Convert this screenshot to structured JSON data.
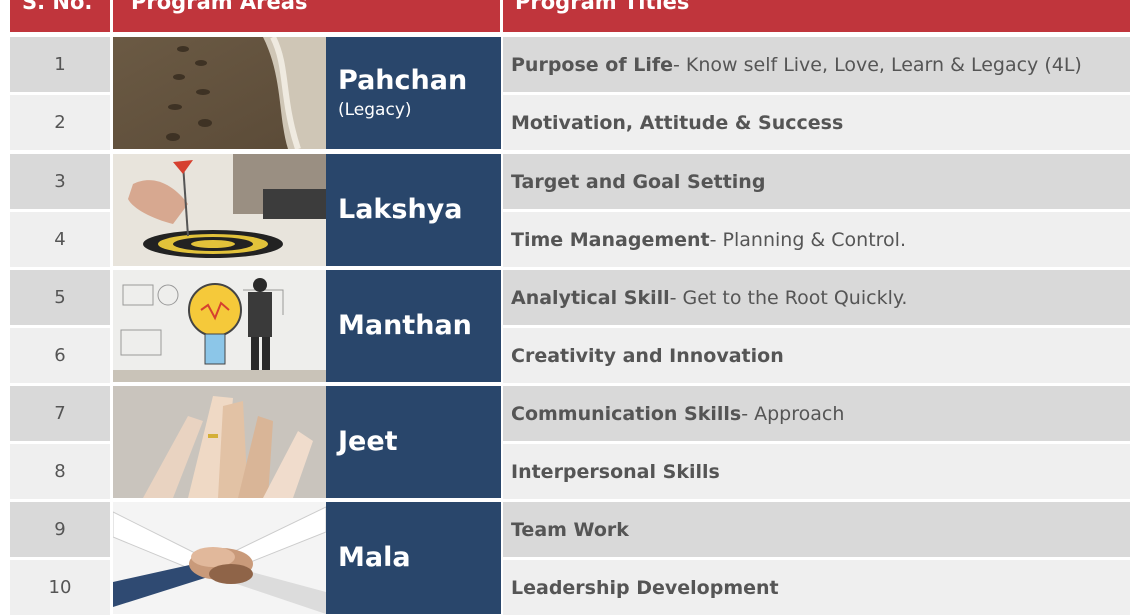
{
  "headers": {
    "sno": "S. No.",
    "areas": "Program Areas",
    "titles": "Program Titles"
  },
  "areas": [
    {
      "name": "Pahchan",
      "sub": "(Legacy)",
      "image": "footprints-on-beach"
    },
    {
      "name": "Lakshya",
      "sub": "",
      "image": "dart-on-target"
    },
    {
      "name": "Manthan",
      "sub": "",
      "image": "lightbulb-sketch"
    },
    {
      "name": "Jeet",
      "sub": "",
      "image": "high-five-hands"
    },
    {
      "name": "Mala",
      "sub": "",
      "image": "stacked-hands"
    }
  ],
  "rows": [
    {
      "sno": "1",
      "bold": "Purpose of Life",
      "desc": " - Know self Live, Love, Learn & Legacy (4L)"
    },
    {
      "sno": "2",
      "bold": "Motivation, Attitude & Success",
      "desc": ""
    },
    {
      "sno": "3",
      "bold": "Target and Goal Setting",
      "desc": ""
    },
    {
      "sno": "4",
      "bold": "Time Management",
      "desc": " - Planning & Control."
    },
    {
      "sno": "5",
      "bold": "Analytical Skill",
      "desc": " - Get to the Root Quickly."
    },
    {
      "sno": "6",
      "bold": "Creativity and Innovation",
      "desc": ""
    },
    {
      "sno": "7",
      "bold": "Communication Skills",
      "desc": " - Approach"
    },
    {
      "sno": "8",
      "bold": "Interpersonal Skills",
      "desc": ""
    },
    {
      "sno": "9",
      "bold": "Team Work",
      "desc": ""
    },
    {
      "sno": "10",
      "bold": "Leadership Development",
      "desc": ""
    }
  ],
  "colors": {
    "header": "#c0353c",
    "area_box": "#29466b",
    "row_dark": "#d9d9d9",
    "row_light": "#efefef"
  }
}
